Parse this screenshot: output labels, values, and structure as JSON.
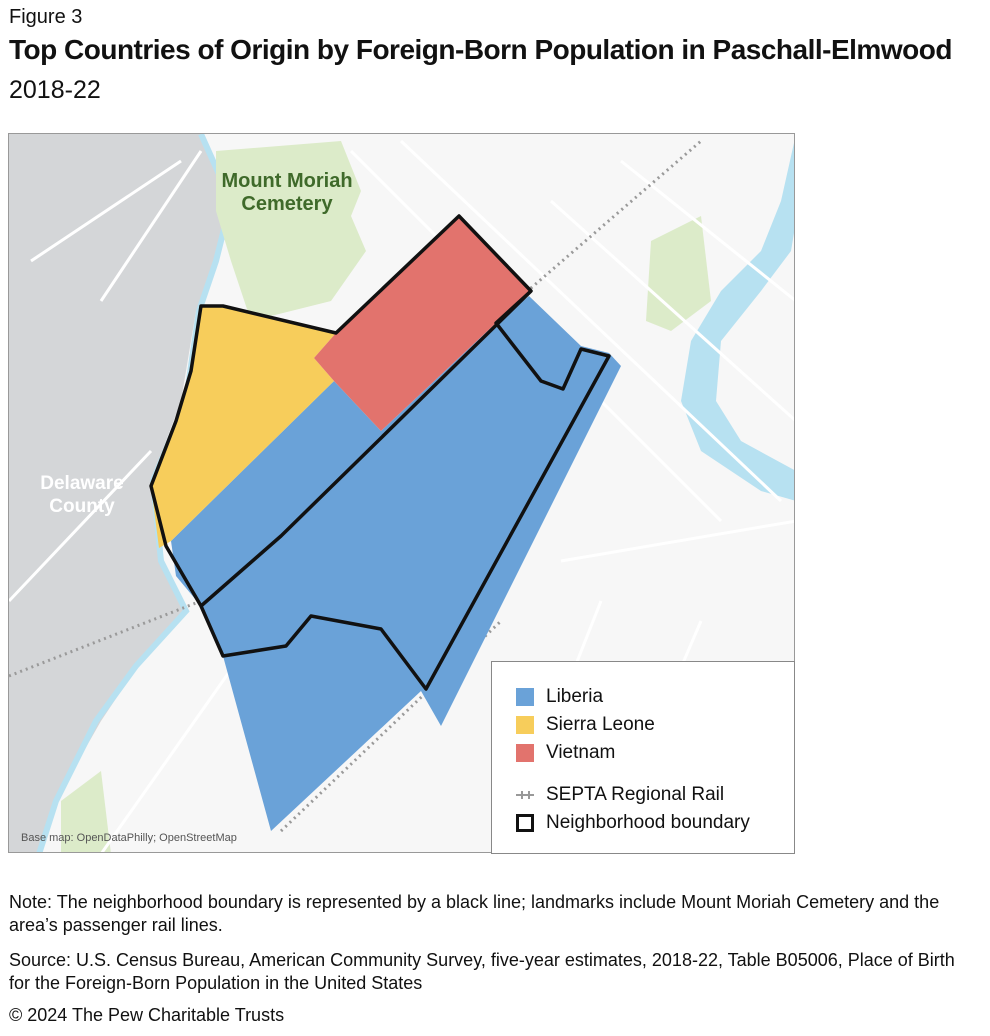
{
  "figure_label": "Figure 3",
  "title": "Top Countries of Origin by Foreign-Born Population in Paschall-Elmwood",
  "subtitle": "2018-22",
  "map": {
    "labels": {
      "cemetery": "Mount Moriah Cemetery",
      "county": "Delaware County"
    },
    "credit": "Base map: OpenDataPhilly; OpenStreetMap",
    "colors": {
      "liberia": "#6aa2d8",
      "sierra_leone": "#f7cd5b",
      "vietnam": "#e2736d",
      "water": "#b7e1f1",
      "park": "#dcebc9",
      "county": "#d4d6d8",
      "boundary": "#111111"
    }
  },
  "legend": {
    "items": [
      {
        "label": "Liberia",
        "color": "#6aa2d8"
      },
      {
        "label": "Sierra Leone",
        "color": "#f7cd5b"
      },
      {
        "label": "Vietnam",
        "color": "#e2736d"
      }
    ],
    "rail": "SEPTA Regional Rail",
    "boundary": "Neighborhood boundary"
  },
  "note": "Note: The neighborhood boundary is represented by a black line; landmarks include Mount Moriah Cemetery and the area’s passenger rail lines.",
  "source": "Source: U.S. Census Bureau, American Community Survey, five-year estimates, 2018-22, Table B05006, Place of Birth for the Foreign-Born Population in the United States",
  "copyright": "© 2024 The Pew Charitable Trusts"
}
